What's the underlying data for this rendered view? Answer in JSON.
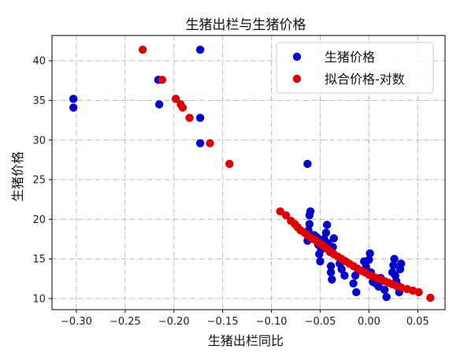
{
  "chart_data": {
    "type": "scatter",
    "title": "生猪出栏与生猪价格",
    "xlabel": "生猪出栏同比",
    "ylabel": "生猪价格",
    "xlim": [
      -0.325,
      0.078
    ],
    "ylim": [
      8.6,
      43.2
    ],
    "x_ticks": [
      -0.3,
      -0.25,
      -0.2,
      -0.15,
      -0.1,
      -0.05,
      0.0,
      0.05
    ],
    "x_tick_labels": [
      "−0.30",
      "−0.25",
      "−0.20",
      "−0.15",
      "−0.10",
      "−0.05",
      "0.00",
      "0.05"
    ],
    "y_ticks": [
      10,
      15,
      20,
      25,
      30,
      35,
      40
    ],
    "y_tick_labels": [
      "10",
      "15",
      "20",
      "25",
      "30",
      "35",
      "40"
    ],
    "grid": true,
    "legend_position": "top-right",
    "series": [
      {
        "name": "生猪价格",
        "color": "#0000cc",
        "marker": "circle",
        "points": [
          [
            -0.303,
            35.2
          ],
          [
            -0.303,
            34.1
          ],
          [
            -0.216,
            37.6
          ],
          [
            -0.215,
            34.5
          ],
          [
            -0.173,
            41.4
          ],
          [
            -0.173,
            32.8
          ],
          [
            -0.173,
            29.6
          ],
          [
            -0.063,
            27.0
          ],
          [
            -0.063,
            17.3
          ],
          [
            -0.062,
            18.6
          ],
          [
            -0.061,
            19.4
          ],
          [
            -0.061,
            20.5
          ],
          [
            -0.06,
            21.0
          ],
          [
            -0.056,
            18.0
          ],
          [
            -0.053,
            17.7
          ],
          [
            -0.052,
            16.8
          ],
          [
            -0.051,
            15.6
          ],
          [
            -0.05,
            14.7
          ],
          [
            -0.049,
            16.2
          ],
          [
            -0.046,
            17.5
          ],
          [
            -0.044,
            18.3
          ],
          [
            -0.043,
            19.3
          ],
          [
            -0.042,
            17.0
          ],
          [
            -0.04,
            15.9
          ],
          [
            -0.039,
            14.1
          ],
          [
            -0.039,
            13.3
          ],
          [
            -0.038,
            12.4
          ],
          [
            -0.037,
            16.5
          ],
          [
            -0.036,
            17.6
          ],
          [
            -0.03,
            14.4
          ],
          [
            -0.028,
            13.7
          ],
          [
            -0.025,
            12.9
          ],
          [
            -0.016,
            11.9
          ],
          [
            -0.014,
            12.9
          ],
          [
            -0.013,
            10.8
          ],
          [
            -0.005,
            14.7
          ],
          [
            -0.003,
            14.0
          ],
          [
            0.0,
            14.9
          ],
          [
            0.001,
            15.7
          ],
          [
            0.002,
            13.3
          ],
          [
            0.004,
            12.1
          ],
          [
            0.007,
            11.9
          ],
          [
            0.01,
            11.5
          ],
          [
            0.012,
            12.6
          ],
          [
            0.016,
            11.1
          ],
          [
            0.018,
            10.2
          ],
          [
            0.024,
            13.3
          ],
          [
            0.025,
            14.2
          ],
          [
            0.026,
            15.0
          ],
          [
            0.027,
            12.9
          ],
          [
            0.028,
            12.2
          ],
          [
            0.03,
            11.6
          ],
          [
            0.031,
            10.8
          ],
          [
            0.032,
            13.7
          ],
          [
            0.033,
            14.4
          ]
        ]
      },
      {
        "name": "拟合价格-对数",
        "color": "#dd0000",
        "marker": "circle",
        "points": [
          [
            -0.232,
            41.4
          ],
          [
            -0.212,
            37.6
          ],
          [
            -0.198,
            35.2
          ],
          [
            -0.193,
            34.5
          ],
          [
            -0.191,
            34.1
          ],
          [
            -0.184,
            32.8
          ],
          [
            -0.163,
            29.6
          ],
          [
            -0.143,
            27.0
          ],
          [
            -0.091,
            21.0
          ],
          [
            -0.085,
            20.5
          ],
          [
            -0.08,
            19.8
          ],
          [
            -0.076,
            19.4
          ],
          [
            -0.073,
            19.0
          ],
          [
            -0.07,
            18.6
          ],
          [
            -0.066,
            18.3
          ],
          [
            -0.063,
            18.0
          ],
          [
            -0.06,
            17.7
          ],
          [
            -0.057,
            17.5
          ],
          [
            -0.054,
            17.3
          ],
          [
            -0.051,
            17.0
          ],
          [
            -0.048,
            16.8
          ],
          [
            -0.045,
            16.5
          ],
          [
            -0.042,
            16.2
          ],
          [
            -0.039,
            15.9
          ],
          [
            -0.036,
            15.6
          ],
          [
            -0.032,
            15.3
          ],
          [
            -0.028,
            15.0
          ],
          [
            -0.024,
            14.7
          ],
          [
            -0.02,
            14.4
          ],
          [
            -0.016,
            14.1
          ],
          [
            -0.012,
            13.8
          ],
          [
            -0.008,
            13.5
          ],
          [
            -0.004,
            13.3
          ],
          [
            0.0,
            13.0
          ],
          [
            0.004,
            12.8
          ],
          [
            0.008,
            12.6
          ],
          [
            0.012,
            12.4
          ],
          [
            0.016,
            12.2
          ],
          [
            0.02,
            12.0
          ],
          [
            0.024,
            11.8
          ],
          [
            0.028,
            11.6
          ],
          [
            0.033,
            11.4
          ],
          [
            0.039,
            11.2
          ],
          [
            0.045,
            11.0
          ],
          [
            0.051,
            10.8
          ],
          [
            0.063,
            10.1
          ]
        ]
      }
    ]
  }
}
